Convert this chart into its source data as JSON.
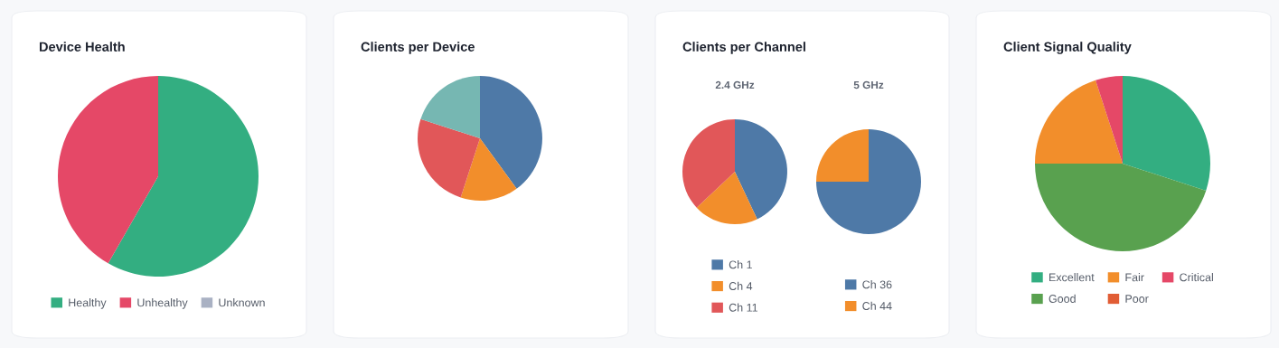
{
  "chart_data": [
    {
      "type": "pie",
      "title": "Device Health",
      "categories": [
        "Healthy",
        "Unhealthy",
        "Unknown"
      ],
      "values": [
        58.3,
        41.7,
        0
      ],
      "colors": [
        "#33ae81",
        "#e54867",
        "#a9b1c3"
      ],
      "legend": "bottom"
    },
    {
      "type": "pie",
      "title": "Clients per Device",
      "categories": [
        null,
        null,
        null,
        null
      ],
      "values": [
        40,
        15,
        25,
        20
      ],
      "colors": [
        "#4e79a7",
        "#f28e2b",
        "#e15759",
        "#76b7b2"
      ]
    },
    {
      "type": "pie",
      "title": "Clients per Channel",
      "subtitle": "2.4 GHz",
      "categories": [
        "Ch 1",
        "Ch 4",
        "Ch 11"
      ],
      "values": [
        43,
        20,
        37
      ],
      "colors": [
        "#4e79a7",
        "#f28e2b",
        "#e15759"
      ],
      "legend": "bottom"
    },
    {
      "type": "pie",
      "subtitle": "5 GHz",
      "categories": [
        "Ch 36",
        "Ch 44"
      ],
      "values": [
        75,
        25
      ],
      "colors": [
        "#4e79a7",
        "#f28e2b"
      ],
      "legend": "bottom"
    },
    {
      "type": "pie",
      "title": "Client Signal Quality",
      "categories": [
        "Excellent",
        "Good",
        "Fair",
        "Poor",
        "Critical"
      ],
      "values": [
        30,
        45,
        20,
        0,
        5
      ],
      "colors": [
        "#33ae81",
        "#59a14f",
        "#f28e2b",
        "#e15d35",
        "#e54867"
      ],
      "legend": "bottom"
    }
  ]
}
